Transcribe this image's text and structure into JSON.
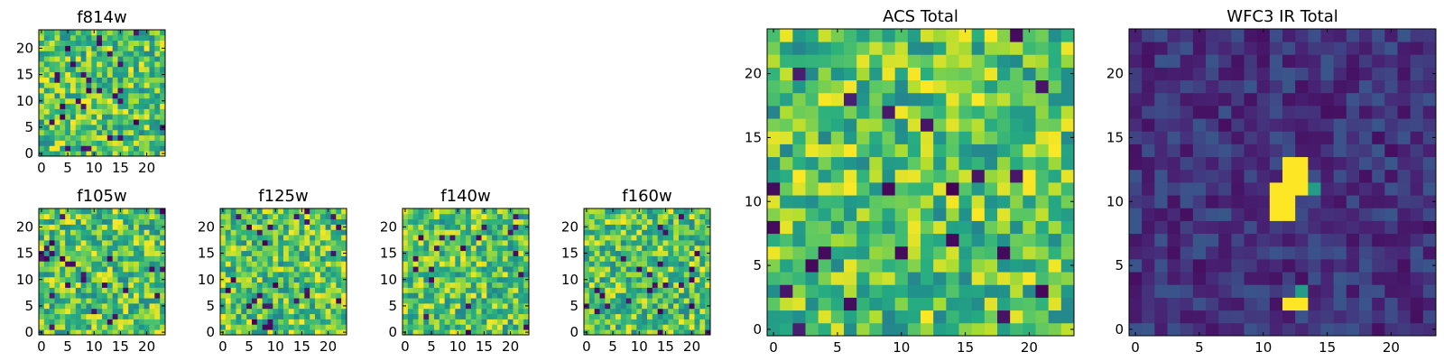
{
  "chart_data": [
    {
      "id": "f814w",
      "type": "heatmap",
      "title": "f814w",
      "grid_size": 24,
      "xticks": [
        "0",
        "5",
        "10",
        "15",
        "20"
      ],
      "yticks": [
        "0",
        "5",
        "10",
        "15",
        "20"
      ],
      "colormap": "viridis",
      "field": "noise"
    },
    {
      "id": "f105w",
      "type": "heatmap",
      "title": "f105w",
      "grid_size": 24,
      "xticks": [
        "0",
        "5",
        "10",
        "15",
        "20"
      ],
      "yticks": [
        "0",
        "5",
        "10",
        "15",
        "20"
      ],
      "colormap": "viridis",
      "field": "noise"
    },
    {
      "id": "f125w",
      "type": "heatmap",
      "title": "f125w",
      "grid_size": 24,
      "xticks": [
        "0",
        "5",
        "10",
        "15",
        "20"
      ],
      "yticks": [
        "0",
        "5",
        "10",
        "15",
        "20"
      ],
      "colormap": "viridis",
      "field": "noise"
    },
    {
      "id": "f140w",
      "type": "heatmap",
      "title": "f140w",
      "grid_size": 24,
      "xticks": [
        "0",
        "5",
        "10",
        "15",
        "20"
      ],
      "yticks": [
        "0",
        "5",
        "10",
        "15",
        "20"
      ],
      "colormap": "viridis",
      "field": "noise"
    },
    {
      "id": "f160w",
      "type": "heatmap",
      "title": "f160w",
      "grid_size": 24,
      "xticks": [
        "0",
        "5",
        "10",
        "15",
        "20"
      ],
      "yticks": [
        "0",
        "5",
        "10",
        "15",
        "20"
      ],
      "colormap": "viridis",
      "field": "noise"
    },
    {
      "id": "acs_total",
      "type": "heatmap",
      "title": "ACS Total",
      "grid_size": 24,
      "xticks": [
        "0",
        "5",
        "10",
        "15",
        "20"
      ],
      "yticks": [
        "0",
        "5",
        "10",
        "15",
        "20"
      ],
      "colormap": "viridis",
      "field": "noise"
    },
    {
      "id": "wfc3_ir_total",
      "type": "heatmap",
      "title": "WFC3 IR Total",
      "grid_size": 24,
      "xticks": [
        "0",
        "5",
        "10",
        "15",
        "20"
      ],
      "yticks": [
        "0",
        "5",
        "10",
        "15",
        "20"
      ],
      "colormap": "viridis",
      "field": "low",
      "hot_pixels": [
        [
          12,
          13
        ],
        [
          13,
          13
        ],
        [
          12,
          12
        ],
        [
          13,
          12
        ],
        [
          11,
          11
        ],
        [
          12,
          11
        ],
        [
          13,
          11
        ],
        [
          12,
          10
        ],
        [
          11,
          10
        ],
        [
          12,
          9
        ],
        [
          11,
          9
        ],
        [
          12,
          2
        ],
        [
          13,
          2
        ]
      ],
      "warm_pixels": [
        [
          12,
          12
        ],
        [
          14,
          11
        ],
        [
          13,
          3
        ]
      ]
    }
  ]
}
